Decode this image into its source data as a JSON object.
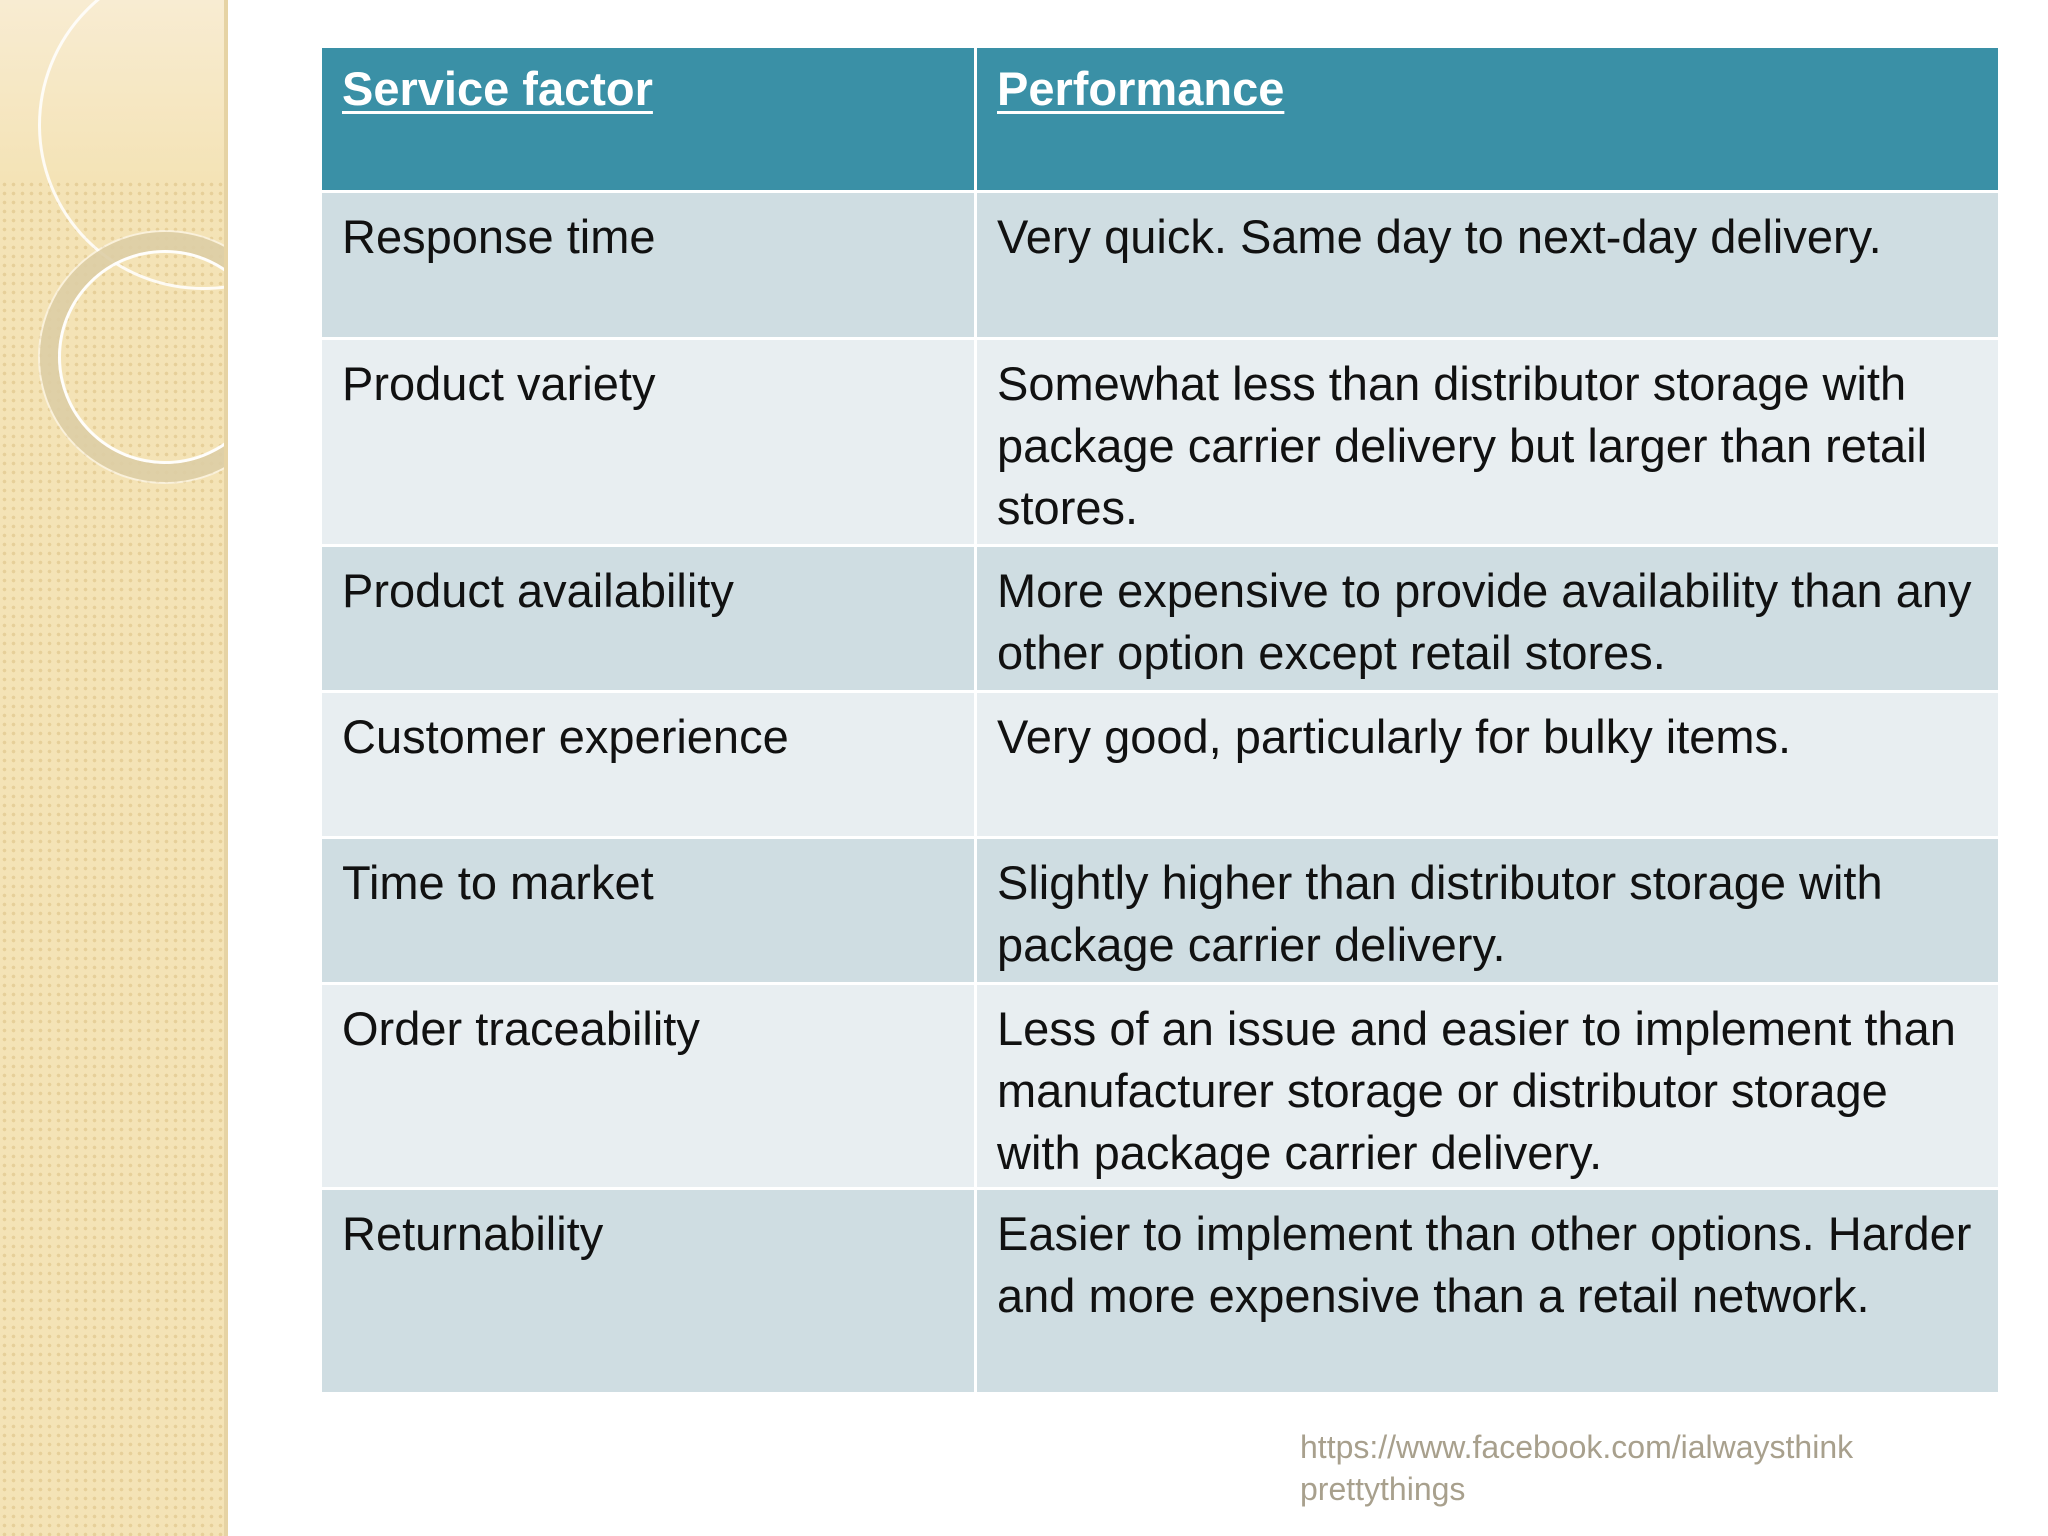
{
  "table": {
    "headers": [
      "Service factor",
      "Performance"
    ],
    "rows": [
      {
        "factor": "Response time",
        "performance": "Very quick. Same day to next-day delivery."
      },
      {
        "factor": "Product variety",
        "performance": "Somewhat less than distributor storage with package carrier delivery but larger than retail stores."
      },
      {
        "factor": "Product availability",
        "performance": "More expensive to provide availability than any other option except retail stores."
      },
      {
        "factor": "Customer experience",
        "performance": "Very good, particularly for bulky items."
      },
      {
        "factor": "Time to market",
        "performance": "Slightly higher than distributor storage with package carrier delivery."
      },
      {
        "factor": "Order traceability",
        "performance": "Less of an issue and easier to implement than manufacturer storage or distributor storage with package carrier delivery."
      },
      {
        "factor": "Returnability",
        "performance": "Easier to implement than other options. Harder and more expensive than a retail network."
      }
    ]
  },
  "footer": {
    "url_line1": "https://www.facebook.com/ialwaysthink",
    "url_line2": "prettythings"
  },
  "colors": {
    "header_bg": "#3a90a6",
    "row_dark": "#cfdde2",
    "row_light": "#e8eef1",
    "side_panel": "#f4e3b6"
  }
}
